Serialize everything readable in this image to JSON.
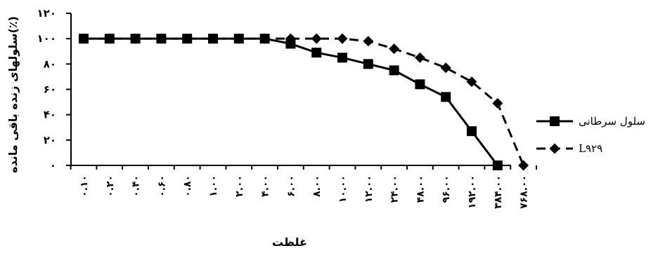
{
  "chart_data": {
    "type": "line",
    "xlabel": "غلظت",
    "ylabel": "سلولهای زنده باقی مانده(٪)",
    "ylim": [
      0,
      120
    ],
    "yticks": [
      "۰",
      "۲۰",
      "۴۰",
      "۶۰",
      "۸۰",
      "۱۰۰",
      "۱۲۰"
    ],
    "categories": [
      "۰.۱۰",
      "۰.۲۰",
      "۰.۴۰",
      "۰.۶۰",
      "۰.۸۰",
      "۱.۰۰",
      "۲.۰۰",
      "۴.۰۰",
      "۶.۰۰",
      "۸.۰۰",
      "۱۰.۰۰",
      "۱۲.۰۰",
      "۲۴.۰۰",
      "۴۸.۰۰",
      "۹۶.۰۰",
      "۱۹۲.۰۰",
      "۳۸۴.۰۰",
      "۷۶۸.۰۰"
    ],
    "grid": false,
    "legend_position": "right",
    "series": [
      {
        "name": "سلول سرطانی",
        "marker": "square",
        "line": "solid",
        "color": "#000000",
        "values": [
          100,
          100,
          100,
          100,
          100,
          100,
          100,
          100,
          96,
          89,
          85,
          80,
          75,
          64,
          54,
          27,
          0,
          null
        ]
      },
      {
        "name": "L۹۲۹",
        "marker": "diamond",
        "line": "dashed",
        "color": "#000000",
        "values": [
          100,
          100,
          100,
          100,
          100,
          100,
          100,
          100,
          100,
          100,
          100,
          98,
          92,
          85,
          77,
          66,
          49,
          0
        ]
      }
    ]
  }
}
